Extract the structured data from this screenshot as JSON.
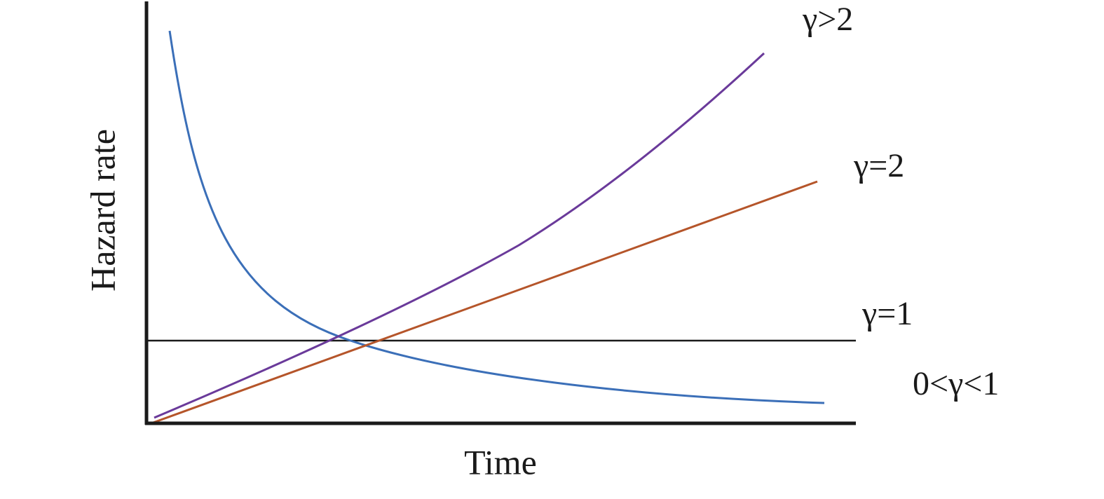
{
  "axes": {
    "y_label": "Hazard rate",
    "x_label": "Time"
  },
  "curves": [
    {
      "label": "γ>2"
    },
    {
      "label": "γ=2"
    },
    {
      "label": "γ=1"
    },
    {
      "label": "0<γ<1"
    }
  ]
}
